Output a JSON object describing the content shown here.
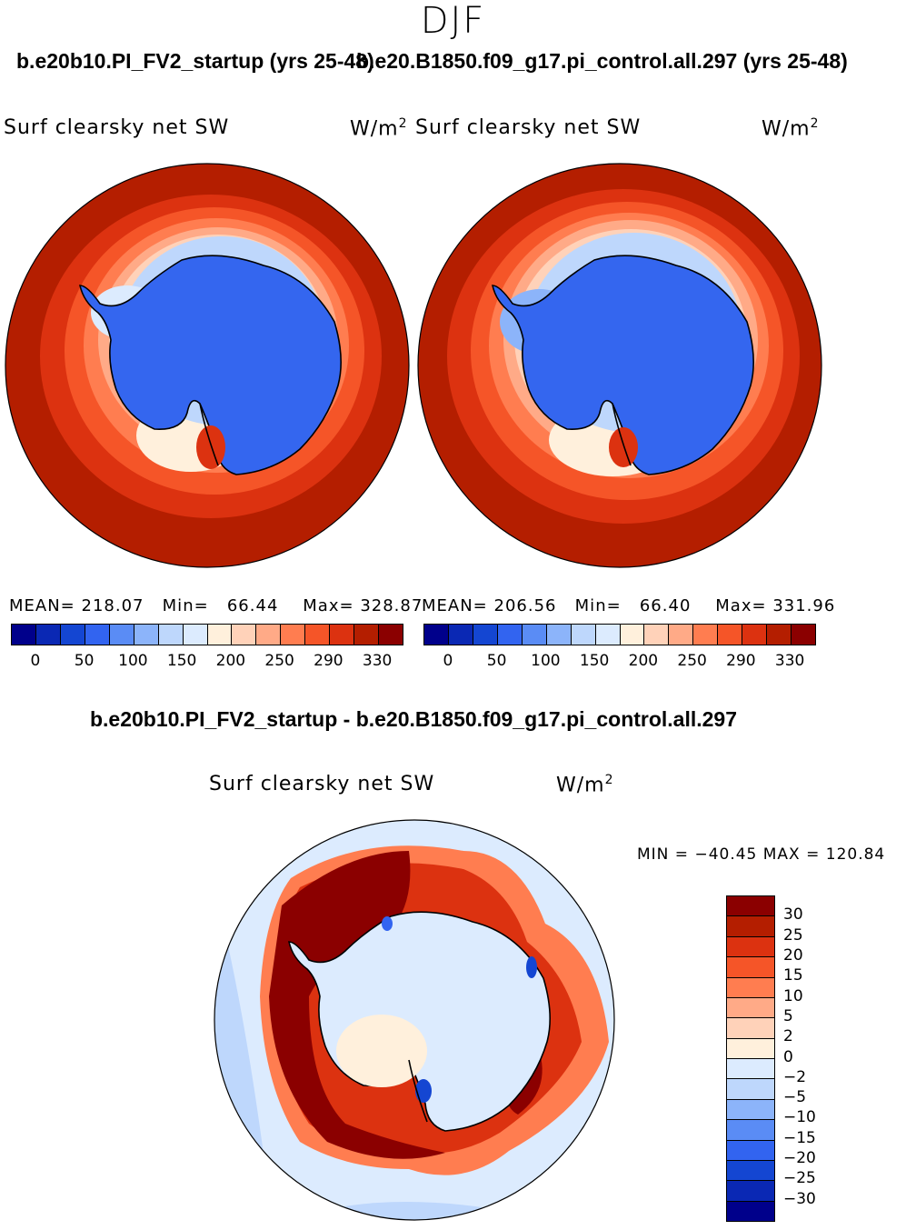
{
  "chart_data": [
    {
      "type": "heatmap",
      "panel": "left",
      "case": "b.e20b10.PI_FV2_startup (yrs 25-48)",
      "title_left": "Surf clearsky net SW",
      "units": "W/m",
      "units_exp": "2",
      "projection": "south polar stereographic",
      "stats": {
        "mean": "218.07",
        "min": "66.44",
        "max": "328.87"
      },
      "mean_label": "MEAN=",
      "min_label": "Min=",
      "max_label": "Max=",
      "colorbar_ticks": [
        "0",
        "50",
        "100",
        "150",
        "200",
        "250",
        "290",
        "330"
      ]
    },
    {
      "type": "heatmap",
      "panel": "right",
      "case": "b.e20.B1850.f09_g17.pi_control.all.297 (yrs 25-48)",
      "title_left": "Surf clearsky net SW",
      "units": "W/m",
      "units_exp": "2",
      "projection": "south polar stereographic",
      "stats": {
        "mean": "206.56",
        "min": "66.40",
        "max": "331.96"
      },
      "mean_label": "MEAN=",
      "min_label": "Min=",
      "max_label": "Max=",
      "colorbar_ticks": [
        "0",
        "50",
        "100",
        "150",
        "200",
        "250",
        "290",
        "330"
      ]
    },
    {
      "type": "heatmap",
      "panel": "difference",
      "case": "b.e20b10.PI_FV2_startup - b.e20.B1850.f09_g17.pi_control.all.297",
      "title_left": "Surf clearsky net SW",
      "units": "W/m",
      "units_exp": "2",
      "projection": "south polar stereographic",
      "stats_text": "MIN = −40.45 MAX = 120.84",
      "stats": {
        "min": -40.45,
        "max": 120.84
      },
      "colorbar_levels": [
        "30",
        "25",
        "20",
        "15",
        "10",
        "5",
        "2",
        "0",
        "−2",
        "−5",
        "−10",
        "−15",
        "−20",
        "−25",
        "−30"
      ]
    }
  ],
  "season": "DJF",
  "colors": {
    "abs_scale": [
      "#00008b",
      "#0a28b4",
      "#1446d2",
      "#3264f0",
      "#5a8cf5",
      "#8cb4fa",
      "#bed7fc",
      "#dcebfe",
      "#fff0dc",
      "#ffd2b9",
      "#ffaa87",
      "#ff7d50",
      "#f55528",
      "#dc3210",
      "#b41e00",
      "#8b0000"
    ],
    "diff_scale": [
      "#8b0000",
      "#b41e00",
      "#dc3210",
      "#f55528",
      "#ff7d50",
      "#ffaa87",
      "#ffd2b9",
      "#fff0dc",
      "#dcebfe",
      "#bed7fc",
      "#8cb4fa",
      "#5a8cf5",
      "#3264f0",
      "#1446d2",
      "#0a28b4",
      "#00008b"
    ],
    "antarctica_fill": "#3466ef"
  }
}
